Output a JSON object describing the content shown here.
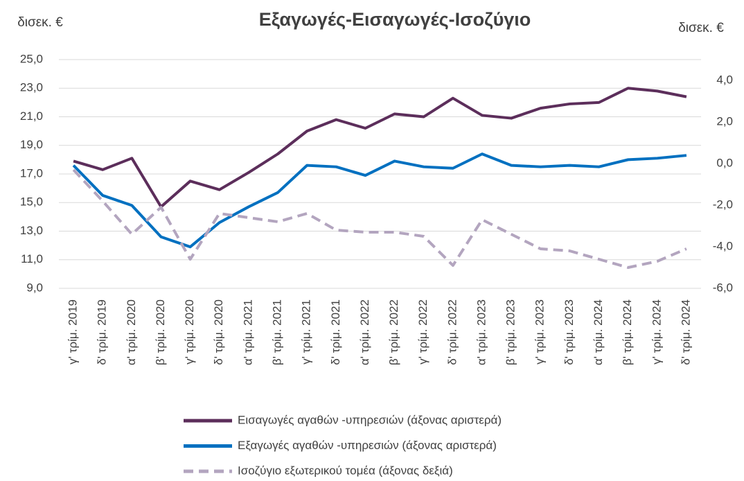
{
  "chart_data": {
    "type": "line",
    "title": "Εξαγωγές-Εισαγωγές-Ισοζύγιο",
    "y_label": "δισεκ. €",
    "y2_label": "δισεκ. €",
    "categories": [
      "γ' τρίμ. 2019",
      "δ' τρίμ. 2019",
      "α' τρίμ. 2020",
      "β' τρίμ. 2020",
      "γ' τρίμ. 2020",
      "δ' τρίμ. 2020",
      "α' τρίμ. 2021",
      "β' τρίμ. 2021",
      "γ' τρίμ. 2021",
      "δ' τρίμ. 2021",
      "α' τρίμ. 2022",
      "β' τρίμ. 2022",
      "γ' τρίμ. 2022",
      "δ' τρίμ. 2022",
      "α' τρίμ. 2023",
      "β' τρίμ. 2023",
      "γ' τρίμ. 2023",
      "δ' τρίμ. 2023",
      "α' τρίμ. 2024",
      "β' τρίμ. 2024",
      "γ' τρίμ. 2024",
      "δ' τρίμ. 2024"
    ],
    "series": [
      {
        "name": "Εισαγωγές αγαθών -υπηρεσιών (άξονας αριστερά)",
        "color": "#5c2e5b",
        "line_style": "solid",
        "values": [
          17.9,
          17.3,
          18.1,
          14.7,
          16.5,
          15.9,
          17.1,
          18.4,
          20.0,
          20.8,
          20.2,
          21.2,
          21.0,
          22.3,
          21.1,
          20.9,
          21.6,
          21.9,
          22.0,
          23.0,
          22.8,
          22.4
        ]
      },
      {
        "name": "Εξαγωγές αγαθών -υπηρεσιών (άξονας αριστερά)",
        "color": "#0070c0",
        "line_style": "solid",
        "values": [
          17.6,
          15.5,
          14.8,
          12.6,
          11.9,
          13.6,
          14.7,
          15.7,
          17.6,
          17.5,
          16.9,
          17.9,
          17.5,
          17.4,
          18.4,
          17.6,
          17.5,
          17.6,
          17.5,
          18.0,
          18.1,
          18.3
        ]
      },
      {
        "name": "Ισοζύγιο εξωτερικού τομέα (άξονας δεξιά)",
        "color": "#b3a5bf",
        "line_style": "dashed",
        "axis": "y2",
        "values": [
          -0.3,
          -1.8,
          -3.4,
          -2.1,
          -4.6,
          -2.4,
          -2.6,
          -2.8,
          -2.4,
          -3.2,
          -3.3,
          -3.3,
          -3.5,
          -4.9,
          -2.7,
          -3.4,
          -4.1,
          -4.2,
          -4.6,
          -5.0,
          -4.7,
          -4.1
        ]
      }
    ],
    "ylim": [
      9,
      25
    ],
    "yticks": [
      {
        "value": 9,
        "label": "9,0"
      },
      {
        "value": 11,
        "label": "11,0"
      },
      {
        "value": 13,
        "label": "13,0"
      },
      {
        "value": 15,
        "label": "15,0"
      },
      {
        "value": 17,
        "label": "17,0"
      },
      {
        "value": 19,
        "label": "19,0"
      },
      {
        "value": 21,
        "label": "21,0"
      },
      {
        "value": 23,
        "label": "23,0"
      },
      {
        "value": 25,
        "label": "25,0"
      }
    ],
    "y2lim": [
      -6,
      5
    ],
    "y2ticks": [
      {
        "value": -6,
        "label": "-6,0"
      },
      {
        "value": -4,
        "label": "-4,0"
      },
      {
        "value": -2,
        "label": "-2,0"
      },
      {
        "value": 0,
        "label": "0,0"
      },
      {
        "value": 2,
        "label": "2,0"
      },
      {
        "value": 4,
        "label": "4,0"
      }
    ],
    "grid": true,
    "legend": "bottom"
  }
}
